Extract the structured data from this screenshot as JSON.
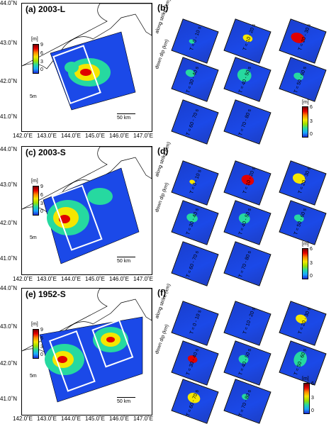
{
  "panels": {
    "a": {
      "label": "(a) 2003-L",
      "colorbar_unit": "[m]",
      "colorbar_ticks": [
        "9",
        "6",
        "3",
        "0"
      ]
    },
    "c": {
      "label": "(c) 2003-S",
      "colorbar_unit": "[m]",
      "colorbar_ticks": [
        "9",
        "6",
        "3",
        "0"
      ]
    },
    "e": {
      "label": "(e) 1952-S",
      "colorbar_unit": "[m]",
      "colorbar_ticks": [
        "9",
        "6",
        "3",
        "0"
      ]
    },
    "b": {
      "label": "(b)",
      "colorbar_unit": "[m]",
      "colorbar_ticks": [
        "6",
        "5",
        "4",
        "3",
        "2",
        "1",
        "0"
      ],
      "times": [
        "T = 0 - 10 s",
        "T = 10 - 20 s",
        "T = 20 - 30 s",
        "T = 30 - 40 s",
        "T = 40 - 50 s",
        "T = 50 - 60 s",
        "T = 60 - 70 s",
        "T = 70 - 80 s"
      ]
    },
    "d": {
      "label": "(d)",
      "colorbar_unit": "[m]",
      "colorbar_ticks": [
        "6",
        "5",
        "4",
        "3",
        "2",
        "1",
        "0"
      ],
      "times": [
        "T = 0 - 10 s",
        "T = 10 - 20 s",
        "T = 20 - 30 s",
        "T = 30 - 40 s",
        "T = 40 - 50 s",
        "T = 50 - 60 s",
        "T = 60 - 70 s",
        "T = 70 - 80 s"
      ]
    },
    "f": {
      "label": "(f)",
      "colorbar_unit": "[m]",
      "colorbar_ticks": [
        "6",
        "5",
        "4",
        "3",
        "2",
        "1",
        "0"
      ],
      "times": [
        "T = 0 - 10 s",
        "T = 10 - 20 s",
        "T = 20 - 30 s",
        "T = 30 - 40 s",
        "T = 40 - 50 s",
        "T = 50 - 60 s",
        "T = 60 - 70 s",
        "T = 70 - 80 s"
      ]
    }
  },
  "axes": {
    "lat_ticks": [
      "44.0˚N",
      "43.0˚N",
      "42.0˚N",
      "41.0˚N"
    ],
    "lon_ticks": [
      "142.0˚E",
      "143.0˚E",
      "144.0˚E",
      "145.0˚E",
      "146.0˚E",
      "147.0˚E"
    ],
    "along_strike": "along strike (km)",
    "down_dip": "down dip (km)",
    "strike_ticks": "60 0 -60-120180",
    "dip_ticks": "60 0 -60"
  },
  "scale": {
    "km": "50 km",
    "slip": "5m"
  },
  "colors": {
    "ocean_blue": "#1b49e8",
    "hot_red": "#e00000",
    "yellow": "#f5e600"
  }
}
